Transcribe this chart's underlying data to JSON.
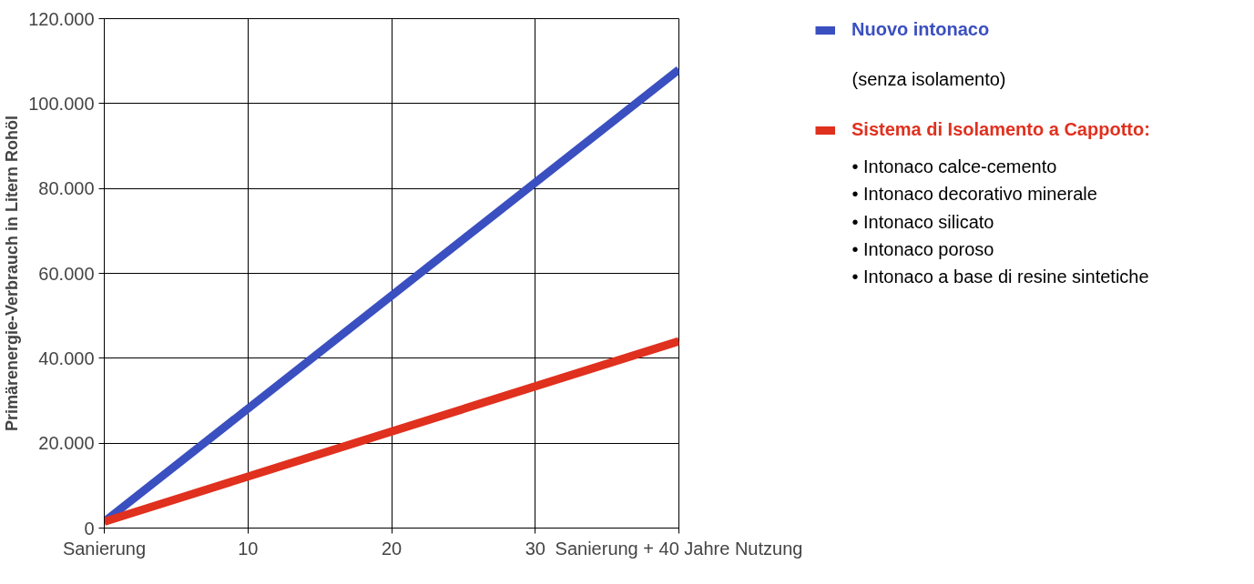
{
  "chart_data": {
    "type": "line",
    "ylabel": "Primärenergie-Verbrauch in Litern Rohöl",
    "x": [
      0,
      40
    ],
    "xlim": [
      0,
      40
    ],
    "xticks": [
      {
        "value": 0,
        "label": "Sanierung"
      },
      10,
      20,
      30,
      {
        "value": 40,
        "label": "Sanierung + 40 Jahre Nutzung"
      }
    ],
    "ylim": [
      0,
      120000
    ],
    "yticks": [
      0,
      {
        "value": 20000,
        "label": "20.000"
      },
      {
        "value": 40000,
        "label": "40.000"
      },
      {
        "value": 60000,
        "label": "60.000"
      },
      {
        "value": 80000,
        "label": "80.000"
      },
      {
        "value": 100000,
        "label": "100.000"
      },
      {
        "value": 120000,
        "label": "120.000"
      }
    ],
    "series": [
      {
        "name": "Nuovo intonaco",
        "color": "#3a4fc0",
        "values": [
          1500,
          108000
        ]
      },
      {
        "name": "Sistema di Isolamento a Cappotto:",
        "color": "#e0301e",
        "values": [
          1500,
          44000
        ]
      }
    ],
    "annotations": [
      "(senza isolamento)",
      "• Intonaco calce-cemento",
      "• Intonaco decorativo minerale",
      "• Intonaco silicato",
      "• Intonaco poroso",
      "• Intonaco a base di resine sintetiche"
    ],
    "grid": true,
    "legend": "right",
    "line_style": "solid",
    "marker": "none"
  }
}
